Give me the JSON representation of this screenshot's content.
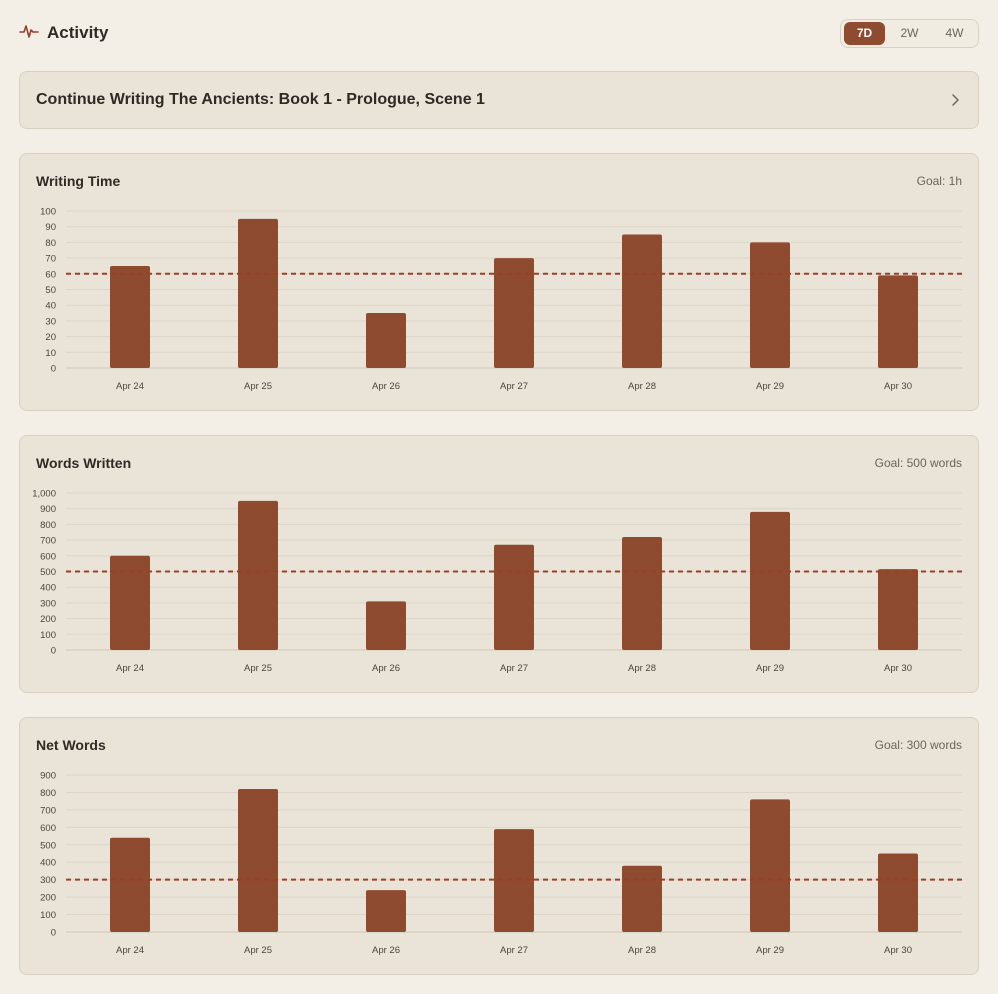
{
  "header": {
    "title": "Activity",
    "ranges": [
      "7D",
      "2W",
      "4W"
    ],
    "active_range": "7D"
  },
  "continue": {
    "label": "Continue Writing The Ancients: Book 1 - Prologue, Scene 1"
  },
  "colors": {
    "accent": "#8f4b2f",
    "background": "#f3efe6",
    "card": "#e9e4d7",
    "goal_line": "#9a3f2a"
  },
  "chart_data": [
    {
      "type": "bar",
      "title": "Writing Time",
      "goal_label": "Goal: 1h",
      "goal": 60,
      "categories": [
        "Apr 24",
        "Apr 25",
        "Apr 26",
        "Apr 27",
        "Apr 28",
        "Apr 29",
        "Apr 30"
      ],
      "values": [
        65,
        95,
        35,
        70,
        85,
        80,
        59
      ],
      "ylim": [
        0,
        100
      ],
      "yticks": [
        0,
        10,
        20,
        30,
        40,
        50,
        60,
        70,
        80,
        90,
        100
      ],
      "ytick_labels": [
        "0",
        "10",
        "20",
        "30",
        "40",
        "50",
        "60",
        "70",
        "80",
        "90",
        "100"
      ],
      "grid": true
    },
    {
      "type": "bar",
      "title": "Words Written",
      "goal_label": "Goal: 500 words",
      "goal": 500,
      "categories": [
        "Apr 24",
        "Apr 25",
        "Apr 26",
        "Apr 27",
        "Apr 28",
        "Apr 29",
        "Apr 30"
      ],
      "values": [
        600,
        950,
        310,
        670,
        720,
        880,
        515
      ],
      "ylim": [
        0,
        1000
      ],
      "yticks": [
        0,
        100,
        200,
        300,
        400,
        500,
        600,
        700,
        800,
        900,
        1000
      ],
      "ytick_labels": [
        "0",
        "100",
        "200",
        "300",
        "400",
        "500",
        "600",
        "700",
        "800",
        "900",
        "1,000"
      ],
      "grid": true
    },
    {
      "type": "bar",
      "title": "Net Words",
      "goal_label": "Goal: 300 words",
      "goal": 300,
      "categories": [
        "Apr 24",
        "Apr 25",
        "Apr 26",
        "Apr 27",
        "Apr 28",
        "Apr 29",
        "Apr 30"
      ],
      "values": [
        540,
        820,
        240,
        590,
        380,
        760,
        450
      ],
      "ylim": [
        0,
        900
      ],
      "yticks": [
        0,
        100,
        200,
        300,
        400,
        500,
        600,
        700,
        800,
        900
      ],
      "ytick_labels": [
        "0",
        "100",
        "200",
        "300",
        "400",
        "500",
        "600",
        "700",
        "800",
        "900"
      ],
      "grid": true
    }
  ]
}
